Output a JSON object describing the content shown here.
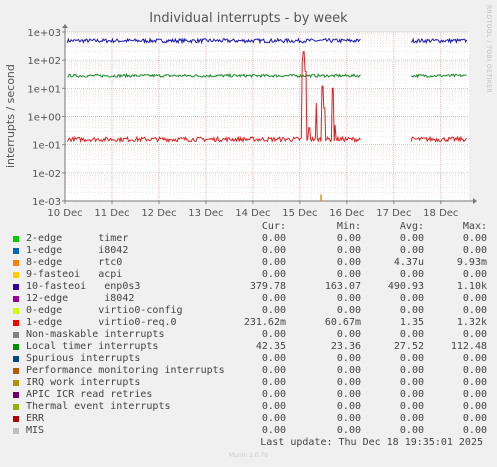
{
  "chart_data": {
    "type": "line",
    "title": "Individual interrupts - by week",
    "ylabel": "interrupts / second",
    "yscale": "log",
    "ylim": [
      0.001,
      1000
    ],
    "yticks": [
      "1e+03",
      "1e+02",
      "1e+01",
      "1e+00",
      "1e-01",
      "1e-02",
      "1e-03"
    ],
    "xticks": [
      "10 Dec",
      "11 Dec",
      "12 Dec",
      "13 Dec",
      "14 Dec",
      "15 Dec",
      "16 Dec",
      "17 Dec",
      "18 Dec"
    ],
    "xlim": [
      0,
      8.6
    ],
    "gap": [
      6.3,
      7.35
    ],
    "series": [
      {
        "name": "10-fasteoi enp0s3",
        "color": "#1a1ab0",
        "baseline": 490,
        "noise": 0.07
      },
      {
        "name": "Local timer interrupts",
        "color": "#1a8a2a",
        "baseline": 28,
        "noise": 0.05
      },
      {
        "name": "1-edge virtio0-req.0",
        "color": "#e02020",
        "baseline": 0.155,
        "noise": 0.08,
        "spikes": [
          [
            5.05,
            80
          ],
          [
            5.08,
            200
          ],
          [
            5.12,
            40
          ],
          [
            5.2,
            0.4
          ],
          [
            5.35,
            3
          ],
          [
            5.48,
            12
          ],
          [
            5.52,
            2
          ],
          [
            5.7,
            10
          ],
          [
            5.75,
            0.5
          ]
        ]
      },
      {
        "name": "8-edge rtc0",
        "color": "#ea8f00",
        "baseline": 0,
        "noise": 0,
        "spikes": [
          [
            5.45,
            0.0017
          ]
        ]
      }
    ]
  },
  "legend": {
    "headers": {
      "cur": "Cur:",
      "min": "Min:",
      "avg": "Avg:",
      "max": "Max:"
    },
    "rows": [
      {
        "label": "2-edge      timer",
        "color": "#00cc00",
        "cur": "0.00",
        "min": "0.00",
        "avg": "0.00",
        "max": "0.00"
      },
      {
        "label": "1-edge      i8042",
        "color": "#0066b3",
        "cur": "0.00",
        "min": "0.00",
        "avg": "0.00",
        "max": "0.00"
      },
      {
        "label": "8-edge      rtc0",
        "color": "#ff8000",
        "cur": "0.00",
        "min": "0.00",
        "avg": "4.37u",
        "max": "9.93m"
      },
      {
        "label": "9-fasteoi   acpi",
        "color": "#ffcc00",
        "cur": "0.00",
        "min": "0.00",
        "avg": "0.00",
        "max": "0.00"
      },
      {
        "label": "10-fasteoi   enp0s3",
        "color": "#330099",
        "cur": "379.78",
        "min": "163.07",
        "avg": "490.93",
        "max": "1.10k"
      },
      {
        "label": "12-edge      i8042",
        "color": "#990099",
        "cur": "0.00",
        "min": "0.00",
        "avg": "0.00",
        "max": "0.00"
      },
      {
        "label": "0-edge      virtio0-config",
        "color": "#ccff00",
        "cur": "0.00",
        "min": "0.00",
        "avg": "0.00",
        "max": "0.00"
      },
      {
        "label": "1-edge      virtio0-req.0",
        "color": "#ff0000",
        "cur": "231.62m",
        "min": "60.67m",
        "avg": "1.35",
        "max": "1.32k"
      },
      {
        "label": "Non-maskable interrupts",
        "color": "#808080",
        "cur": "0.00",
        "min": "0.00",
        "avg": "0.00",
        "max": "0.00"
      },
      {
        "label": "Local timer interrupts",
        "color": "#008f00",
        "cur": "42.35",
        "min": "23.36",
        "avg": "27.52",
        "max": "112.48"
      },
      {
        "label": "Spurious interrupts",
        "color": "#00487d",
        "cur": "0.00",
        "min": "0.00",
        "avg": "0.00",
        "max": "0.00"
      },
      {
        "label": "Performance monitoring interrupts",
        "color": "#b35a00",
        "cur": "0.00",
        "min": "0.00",
        "avg": "0.00",
        "max": "0.00"
      },
      {
        "label": "IRQ work interrupts",
        "color": "#b38f00",
        "cur": "0.00",
        "min": "0.00",
        "avg": "0.00",
        "max": "0.00"
      },
      {
        "label": "APIC ICR read retries",
        "color": "#6b006b",
        "cur": "0.00",
        "min": "0.00",
        "avg": "0.00",
        "max": "0.00"
      },
      {
        "label": "Thermal event interrupts",
        "color": "#8fb300",
        "cur": "0.00",
        "min": "0.00",
        "avg": "0.00",
        "max": "0.00"
      },
      {
        "label": "ERR",
        "color": "#b30000",
        "cur": "0.00",
        "min": "0.00",
        "avg": "0.00",
        "max": "0.00"
      },
      {
        "label": "MIS",
        "color": "#bebebe",
        "cur": "0.00",
        "min": "0.00",
        "avg": "0.00",
        "max": "0.00"
      }
    ]
  },
  "last_update": "Last update: Thu Dec 18 19:35:01 2025",
  "side_brand": "RRDTOOL / TOBI OETIKER",
  "footer": "Munin 2.0.76"
}
